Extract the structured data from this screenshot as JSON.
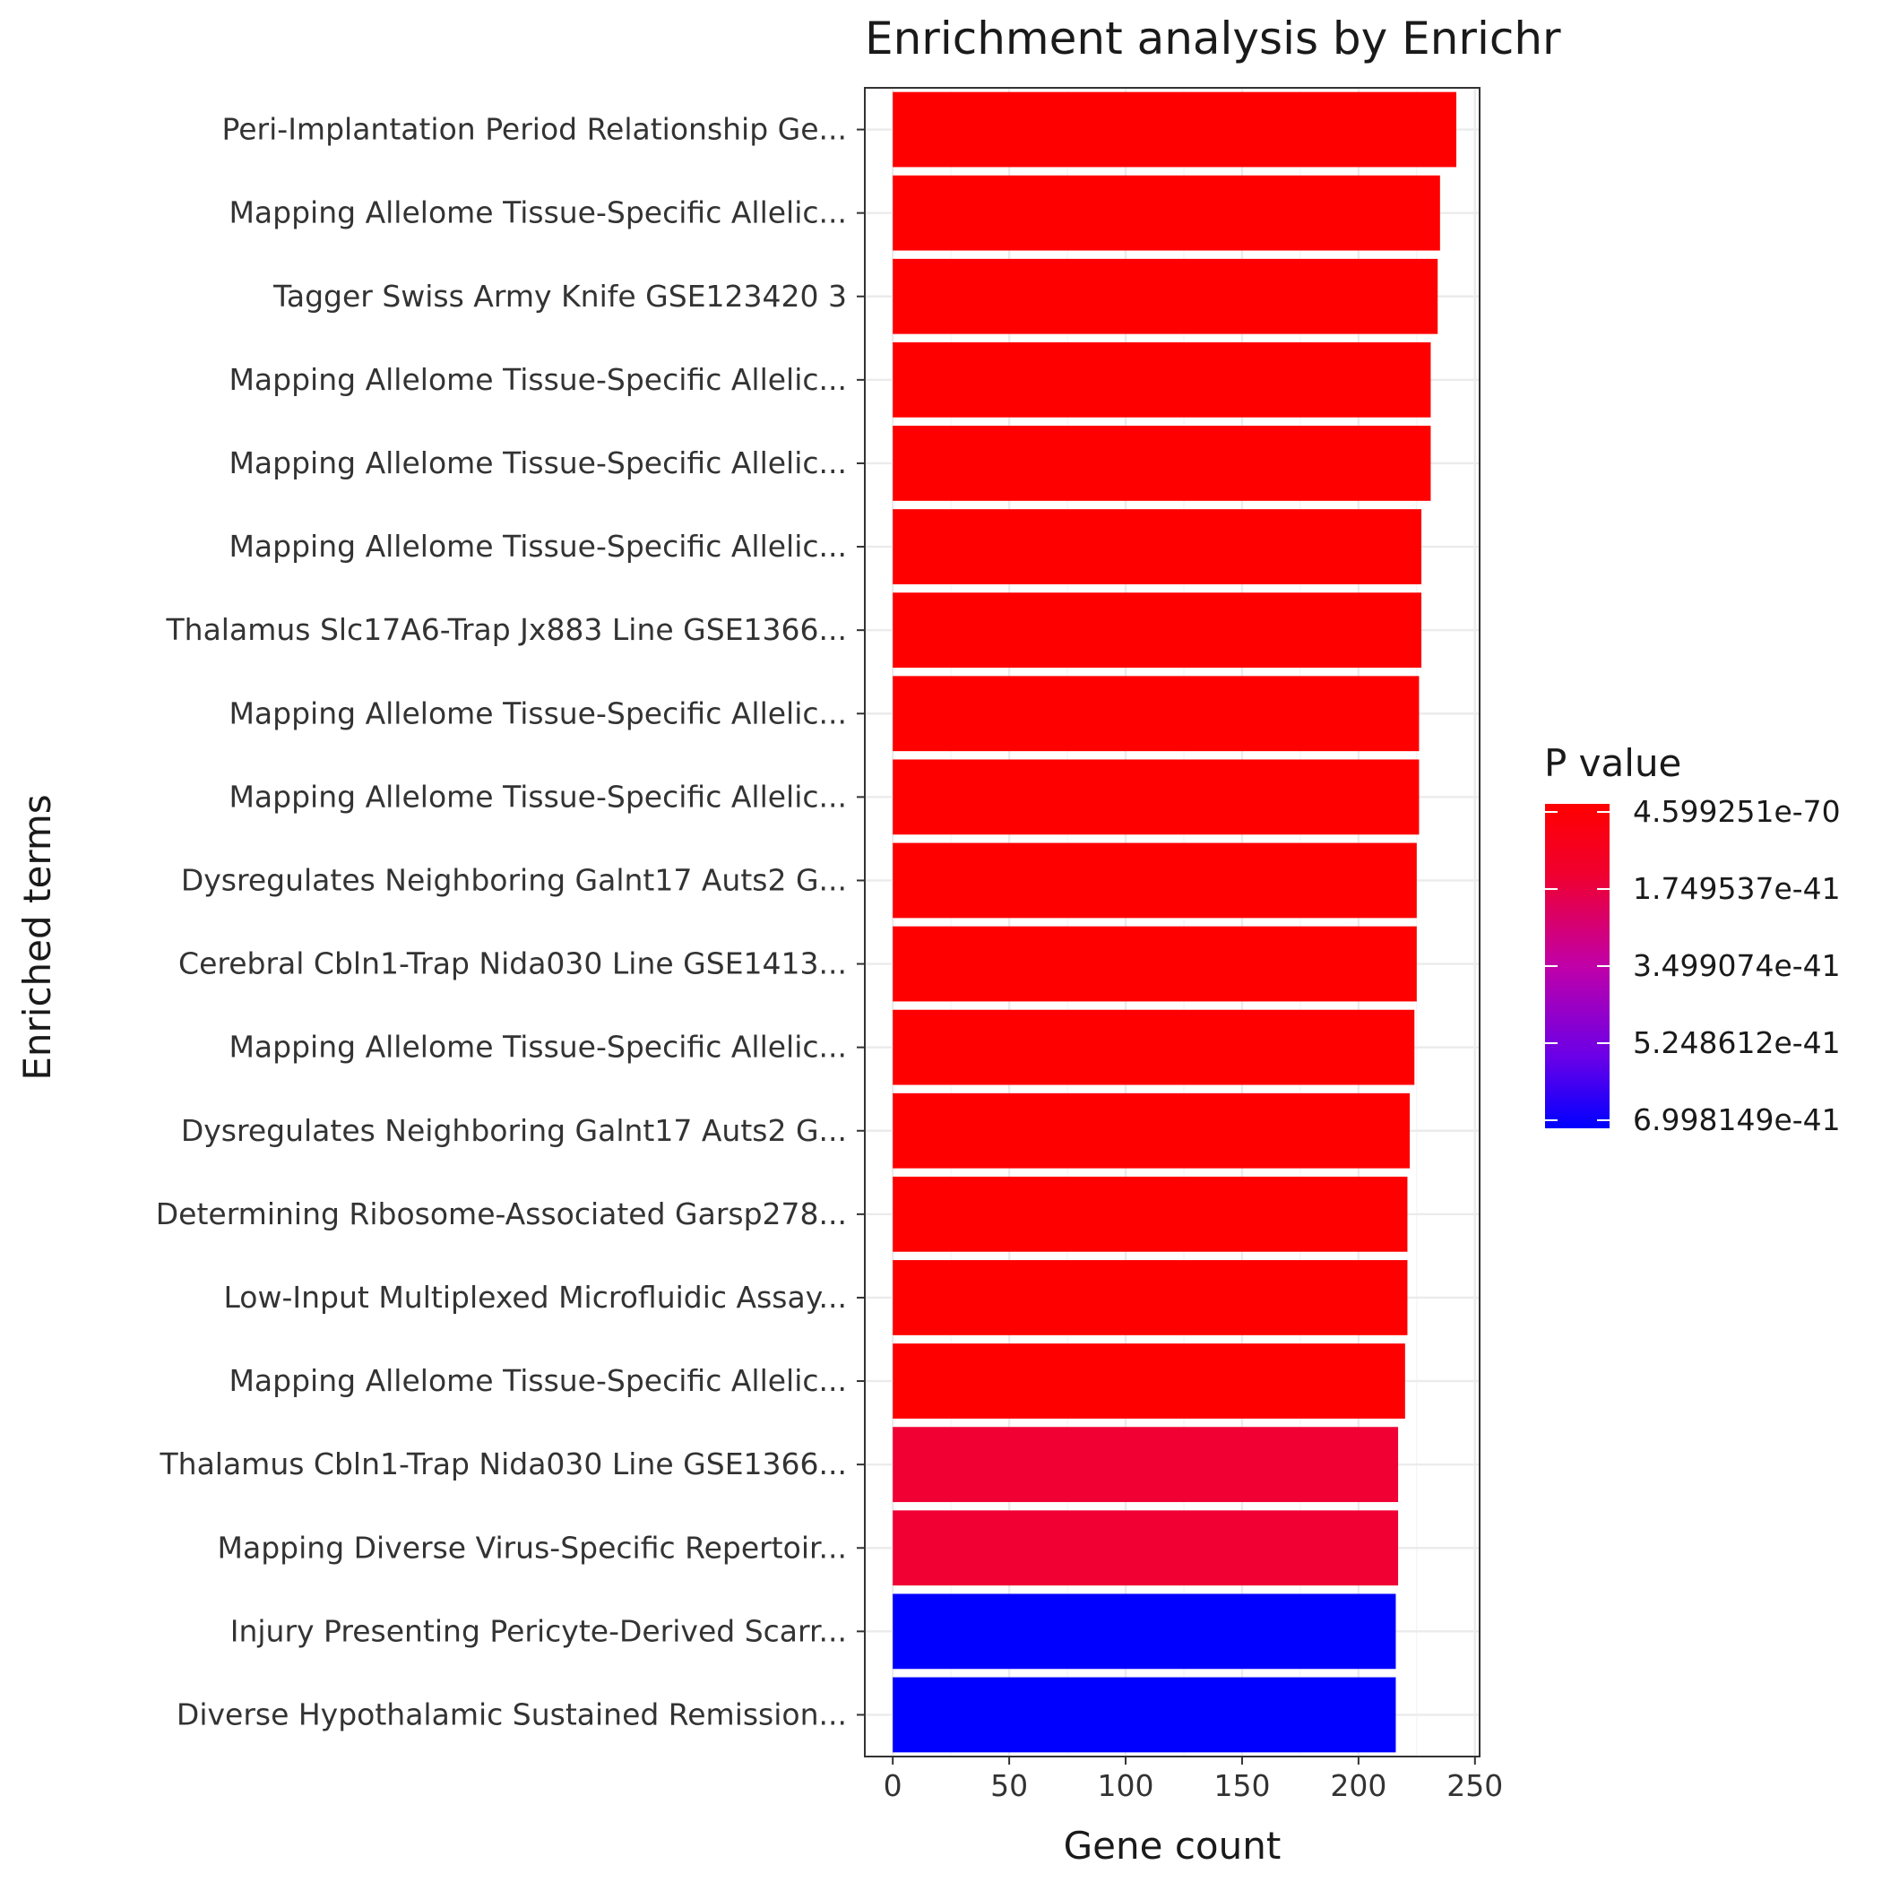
{
  "chart_data": {
    "type": "bar",
    "orientation": "horizontal",
    "title": "Enrichment analysis by Enrichr",
    "xlabel": "Gene count",
    "ylabel": "Enriched terms",
    "xlim": [
      -12,
      252
    ],
    "xticks": [
      0,
      50,
      100,
      150,
      200,
      250
    ],
    "grid": true,
    "legend_position": "right",
    "legend": {
      "title": "P value",
      "labels": [
        "4.599251e-70",
        "1.749537e-41",
        "3.499074e-41",
        "5.248612e-41",
        "6.998149e-41"
      ],
      "colors": [
        "#ff0000",
        "#0000ff"
      ]
    },
    "categories": [
      "Peri-Implantation Period Relationship Ge...",
      "Mapping Allelome Tissue-Specific Allelic...",
      "Tagger Swiss Army Knife GSE123420 3",
      "Mapping Allelome Tissue-Specific Allelic...",
      "Mapping Allelome Tissue-Specific Allelic...",
      "Mapping Allelome Tissue-Specific Allelic...",
      "Thalamus Slc17A6-Trap Jx883 Line GSE1366...",
      "Mapping Allelome Tissue-Specific Allelic...",
      "Mapping Allelome Tissue-Specific Allelic...",
      "Dysregulates Neighboring Galnt17 Auts2 G...",
      "Cerebral Cbln1-Trap Nida030 Line GSE1413...",
      "Mapping Allelome Tissue-Specific Allelic...",
      "Dysregulates Neighboring Galnt17 Auts2 G...",
      "Determining Ribosome-Associated Garsp278...",
      "Low-Input Multiplexed Microfluidic Assay...",
      "Mapping Allelome Tissue-Specific Allelic...",
      "Thalamus Cbln1-Trap Nida030 Line GSE1366...",
      "Mapping Diverse Virus-Specific Repertoir...",
      "Injury Presenting Pericyte-Derived Scarr...",
      "Diverse Hypothalamic Sustained Remission..."
    ],
    "values": [
      242,
      235,
      234,
      231,
      231,
      227,
      227,
      226,
      226,
      225,
      225,
      224,
      222,
      221,
      221,
      220,
      217,
      217,
      216,
      216
    ],
    "colors": [
      "#ff0000",
      "#ff0000",
      "#ff0000",
      "#ff0000",
      "#ff0000",
      "#ff0000",
      "#ff0000",
      "#ff0000",
      "#ff0000",
      "#ff0000",
      "#ff0000",
      "#ff0000",
      "#ff0000",
      "#ff0000",
      "#ff0000",
      "#ff0000",
      "#f00033",
      "#f00033",
      "#0000ff",
      "#0000ff"
    ]
  }
}
